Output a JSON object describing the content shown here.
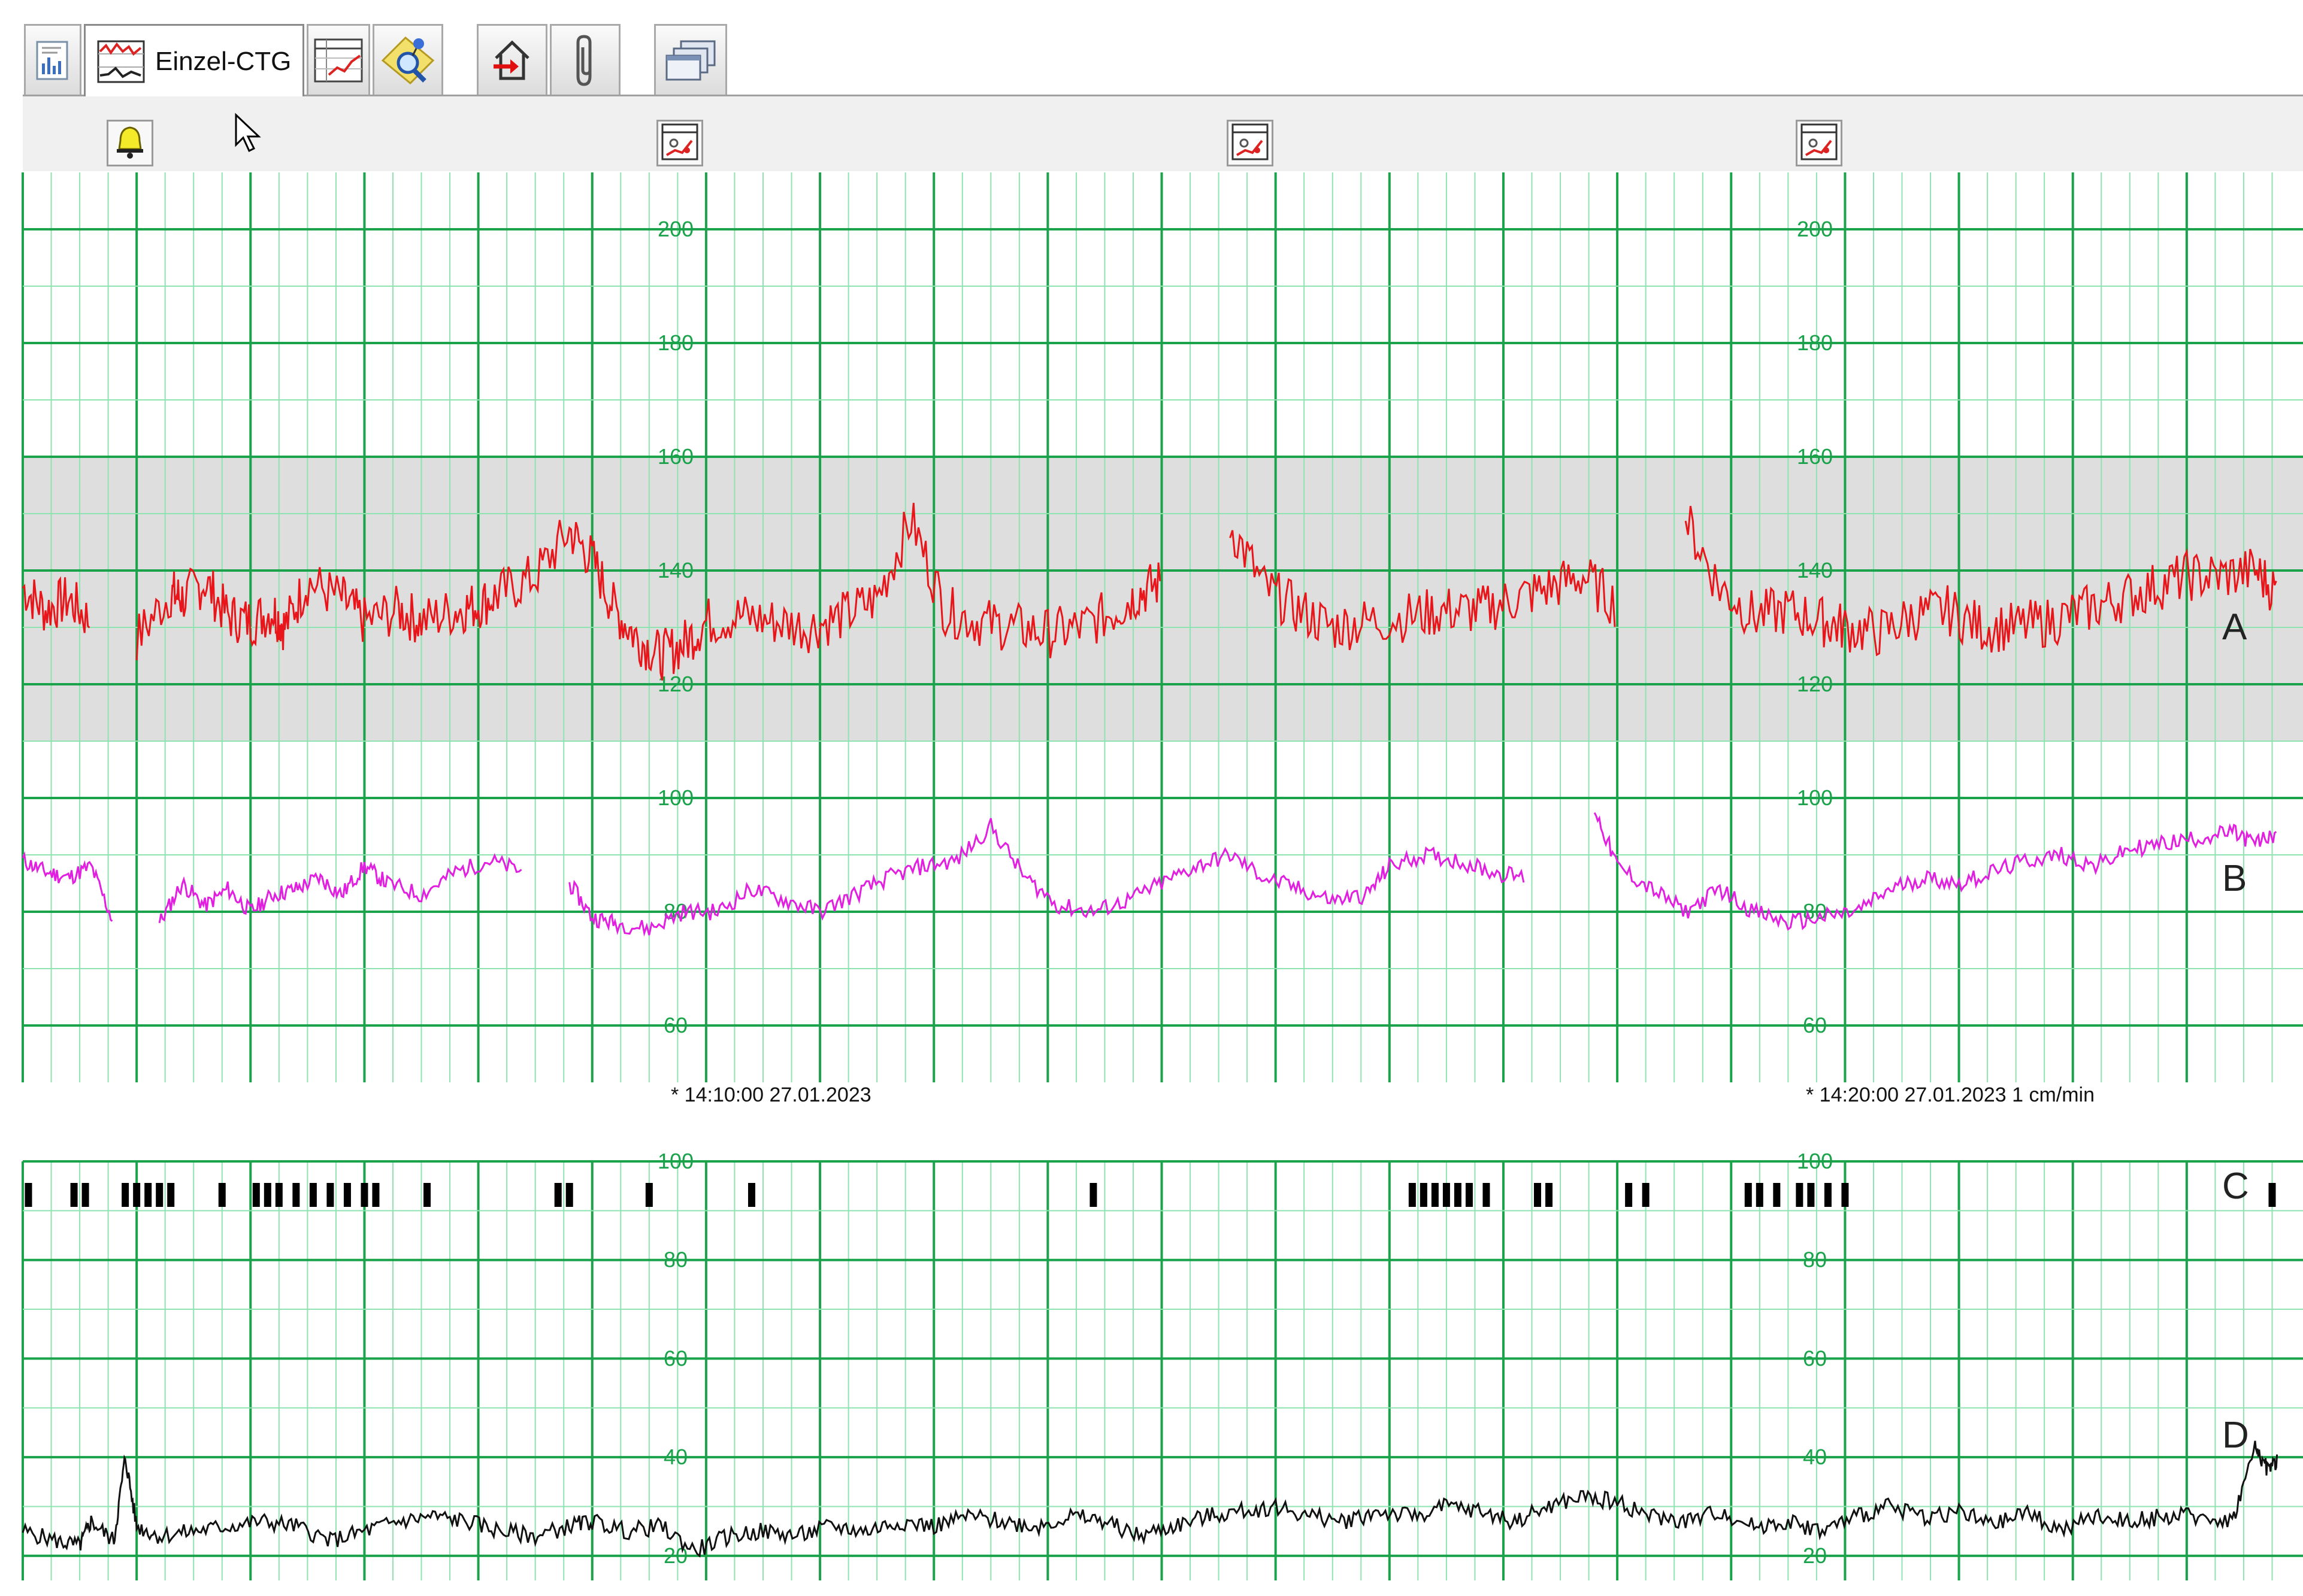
{
  "toolbar": {
    "tabs": [
      {
        "icon": "overview-icon"
      },
      {
        "icon": "ctg-chart-icon",
        "label": "Einzel-CTG",
        "active": true
      },
      {
        "icon": "table-chart-icon"
      },
      {
        "icon": "search-note-icon"
      },
      {
        "icon": "home-exit-icon"
      },
      {
        "icon": "paperclip-icon"
      },
      {
        "icon": "windows-icon"
      }
    ],
    "alarm_icon": "bell-icon",
    "panel_icons": [
      "chart-settings-icon",
      "chart-settings-icon",
      "chart-settings-icon"
    ]
  },
  "colors": {
    "grid_major": "#1aa34a",
    "grid_minor": "#8fe3b0",
    "normal_band": "#dedede",
    "fhr": "#e8161a",
    "maternal": "#e21fe0",
    "toco": "#111111",
    "movement": "#000000"
  },
  "upper_chart": {
    "y_range": [
      50,
      210
    ],
    "normal_band": [
      110,
      160
    ],
    "tick_labels": [
      "200",
      "180",
      "160",
      "140",
      "120",
      "100",
      "80",
      "60"
    ],
    "trace_labels": [
      "A",
      "B"
    ],
    "timestamps": [
      "* 14:10:00 27.01.2023",
      "* 14:20:00 27.01.2023  1 cm/min"
    ]
  },
  "lower_chart": {
    "y_range": [
      15,
      100
    ],
    "tick_labels": [
      "100",
      "80",
      "60",
      "40",
      "20"
    ],
    "trace_labels": [
      "C",
      "D"
    ]
  },
  "chart_data": {
    "type": "line",
    "x_unit": "minutes from 14:04:00",
    "x_range": [
      0,
      19.8
    ],
    "fhr_A": {
      "x": [
        0,
        0.2,
        0.4,
        0.6,
        0.7,
        1.0,
        1.3,
        1.4,
        1.6,
        1.8,
        2.0,
        2.2,
        2.3,
        2.5,
        2.8,
        3.0,
        3.3,
        3.5,
        3.8,
        4.0,
        4.2,
        4.5,
        4.8,
        5.0,
        5.2,
        5.4,
        5.6,
        5.8,
        6.0,
        6.3,
        6.6,
        6.9,
        7.2,
        7.5,
        7.8,
        8.1,
        8.4,
        8.7,
        9.0,
        9.3,
        9.6,
        9.8,
        10.0,
        10.3,
        10.6,
        10.9,
        11.2,
        11.5,
        11.8,
        12.2,
        12.5,
        12.8,
        13.1,
        13.4,
        13.7,
        14.0,
        14.3,
        14.6,
        14.9,
        15.2,
        15.5,
        15.8,
        16.0,
        16.3,
        16.6,
        16.9,
        17.2,
        17.5,
        17.8,
        18.1,
        18.4,
        18.7,
        19.0,
        19.3,
        19.6,
        19.8
      ],
      "y": [
        137,
        133,
        135,
        131,
        null,
        128,
        136,
        135,
        138,
        132,
        131,
        133,
        130,
        138,
        135,
        131,
        133,
        131,
        133,
        134,
        136,
        139,
        147,
        142,
        133,
        128,
        125,
        127,
        131,
        132,
        131,
        130,
        132,
        135,
        149,
        133,
        131,
        130,
        129,
        130,
        133,
        136,
        138,
        null,
        148,
        137,
        133,
        130,
        131,
        132,
        133,
        133,
        135,
        137,
        139,
        134,
        null,
        149,
        137,
        132,
        133,
        131,
        130,
        129,
        132,
        133,
        130,
        130,
        131,
        133,
        135,
        137,
        139,
        139,
        140,
        136
      ]
    },
    "maternal_B": {
      "x": [
        0,
        0.2,
        0.4,
        0.6,
        0.8,
        0.9,
        1.2,
        1.4,
        1.6,
        1.8,
        2.0,
        2.2,
        2.4,
        2.6,
        2.8,
        3.0,
        3.2,
        3.5,
        3.8,
        4.1,
        4.4,
        4.6,
        4.8,
        5.0,
        5.2,
        5.5,
        5.8,
        6.1,
        6.4,
        6.7,
        7.0,
        7.3,
        7.6,
        7.9,
        8.2,
        8.5,
        8.8,
        9.1,
        9.4,
        9.7,
        10.0,
        10.3,
        10.6,
        10.9,
        11.2,
        11.5,
        11.8,
        12.0,
        12.3,
        12.6,
        12.9,
        13.2,
        13.5,
        13.8,
        14.0,
        14.3,
        14.6,
        14.9,
        15.2,
        15.5,
        15.8,
        16.1,
        16.4,
        16.7,
        17.0,
        17.3,
        17.6,
        17.9,
        18.2,
        18.5,
        18.8,
        19.1,
        19.4,
        19.6,
        19.8
      ],
      "y": [
        89,
        87,
        86,
        88,
        78,
        null,
        78,
        85,
        81,
        84,
        80,
        83,
        84,
        86,
        83,
        88,
        85,
        83,
        87,
        89,
        87,
        null,
        85,
        79,
        78,
        77,
        80,
        80,
        84,
        82,
        80,
        83,
        86,
        88,
        89,
        95,
        86,
        81,
        80,
        82,
        85,
        88,
        90,
        86,
        84,
        82,
        83,
        88,
        90,
        89,
        87,
        86,
        null,
        98,
        88,
        84,
        80,
        84,
        80,
        78,
        79,
        80,
        84,
        86,
        85,
        87,
        89,
        90,
        88,
        91,
        92,
        93,
        94,
        92,
        94
      ]
    },
    "movement_C_minutes": [
      0.05,
      0.45,
      0.55,
      0.9,
      1.0,
      1.1,
      1.2,
      1.3,
      1.75,
      2.05,
      2.15,
      2.25,
      2.4,
      2.55,
      2.7,
      2.85,
      3.0,
      3.1,
      3.55,
      4.7,
      4.8,
      5.5,
      6.4,
      9.4,
      12.2,
      12.3,
      12.4,
      12.5,
      12.6,
      12.7,
      12.85,
      13.3,
      13.4,
      14.1,
      14.25,
      15.15,
      15.25,
      15.4,
      15.6,
      15.7,
      15.85,
      16.0,
      19.75
    ],
    "toco_D": {
      "x": [
        0,
        0.3,
        0.5,
        0.6,
        0.8,
        0.9,
        1.0,
        1.2,
        1.5,
        1.8,
        2.1,
        2.4,
        2.7,
        3.0,
        3.3,
        3.6,
        3.9,
        4.2,
        4.5,
        4.8,
        5.0,
        5.3,
        5.6,
        5.9,
        6.2,
        6.5,
        6.8,
        7.1,
        7.4,
        7.7,
        8.0,
        8.3,
        8.6,
        8.9,
        9.2,
        9.5,
        9.8,
        10.1,
        10.4,
        10.7,
        11.0,
        11.3,
        11.6,
        11.9,
        12.2,
        12.5,
        12.8,
        13.1,
        13.4,
        13.7,
        14.0,
        14.3,
        14.6,
        14.9,
        15.2,
        15.5,
        15.8,
        16.1,
        16.4,
        16.7,
        17.0,
        17.3,
        17.6,
        17.9,
        18.2,
        18.5,
        18.8,
        19.1,
        19.4,
        19.6,
        19.7,
        19.8
      ],
      "y": [
        25,
        23,
        22,
        27,
        23,
        40,
        26,
        24,
        25,
        26,
        27,
        26,
        23,
        25,
        27,
        28,
        27,
        25,
        24,
        26,
        27,
        25,
        26,
        21,
        24,
        25,
        24,
        26,
        25,
        27,
        26,
        28,
        27,
        26,
        28,
        27,
        24,
        26,
        28,
        29,
        30,
        28,
        27,
        29,
        28,
        30,
        29,
        27,
        30,
        32,
        31,
        28,
        27,
        29,
        26,
        27,
        25,
        28,
        30,
        28,
        29,
        26,
        29,
        25,
        28,
        27,
        28,
        28,
        27,
        42,
        38,
        39
      ]
    }
  }
}
